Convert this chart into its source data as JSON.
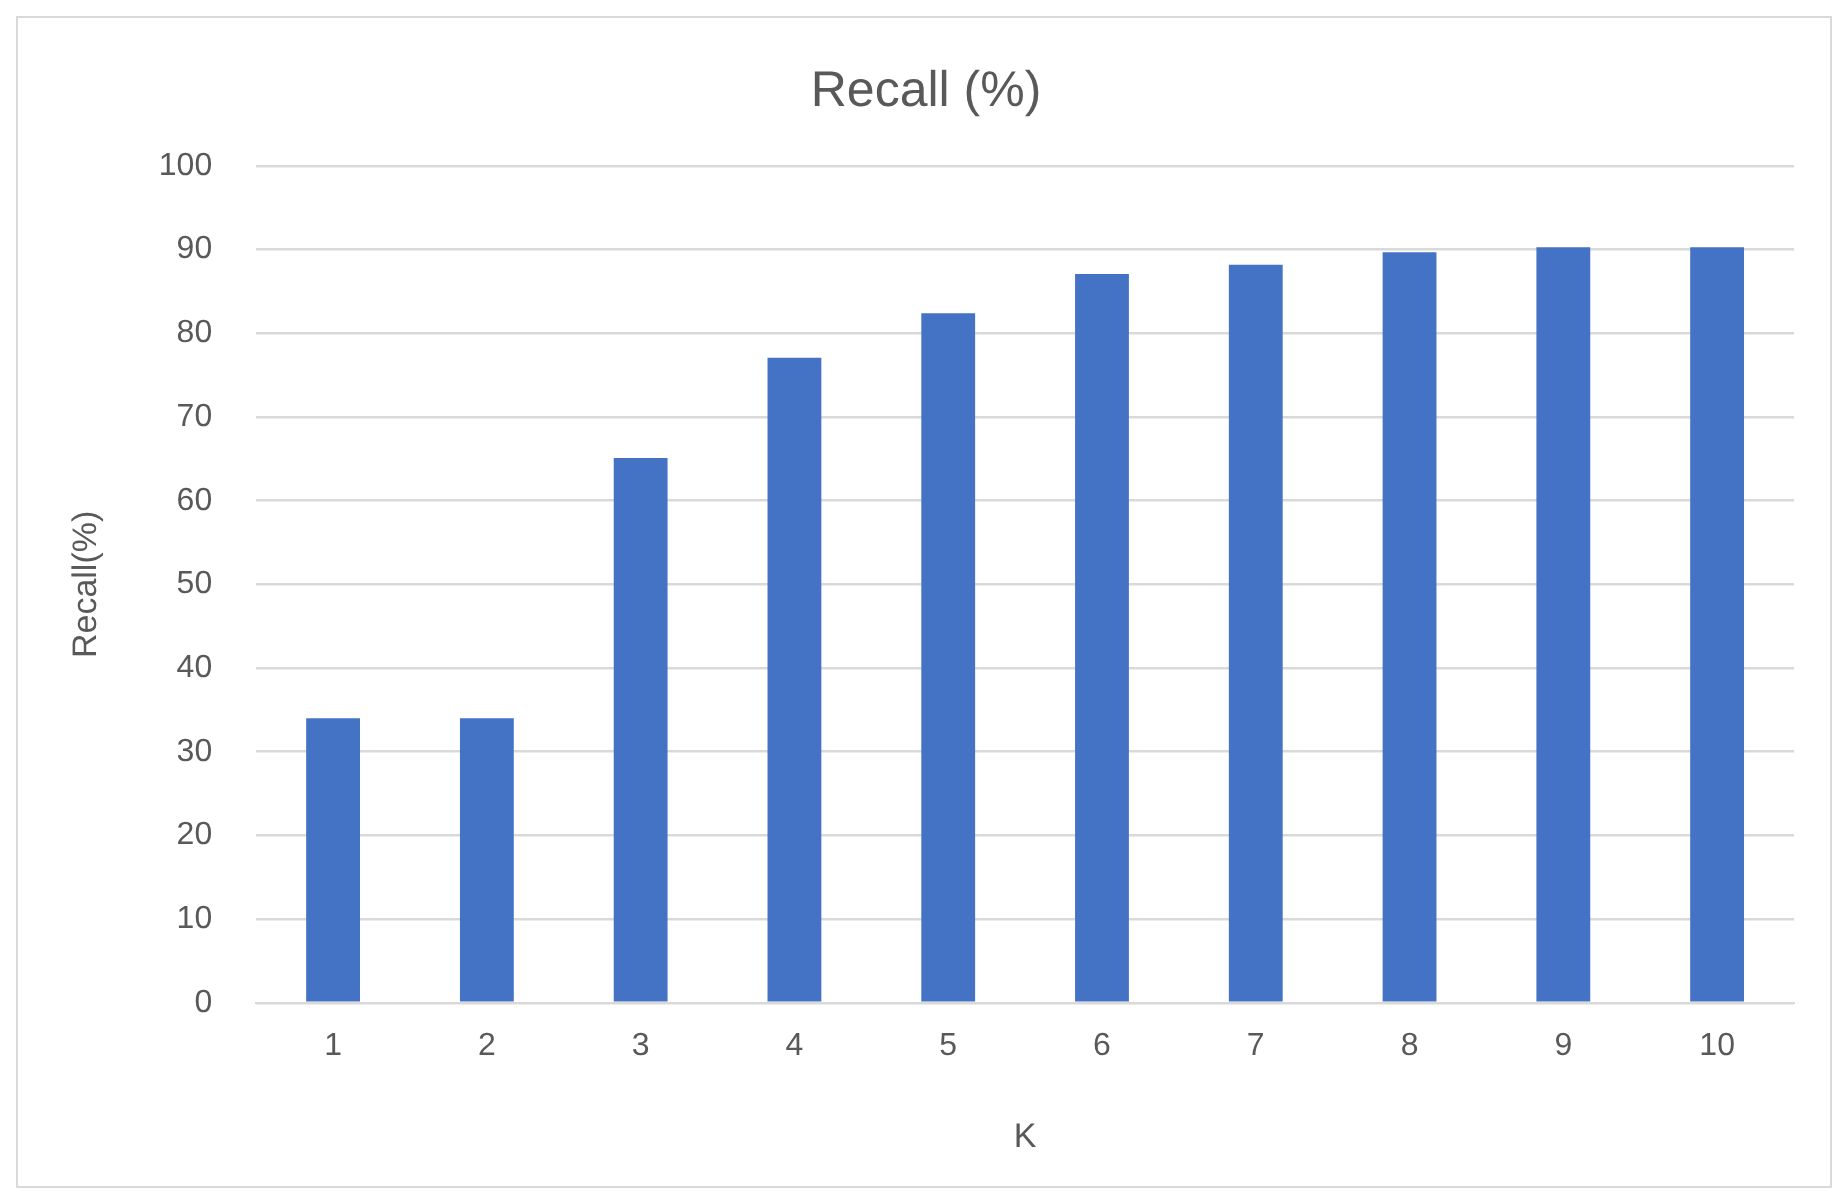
{
  "chart_data": {
    "type": "bar",
    "title": "Recall (%)",
    "xlabel": "K",
    "ylabel": "Recall(%)",
    "categories": [
      "1",
      "2",
      "3",
      "4",
      "5",
      "6",
      "7",
      "8",
      "9",
      "10"
    ],
    "values": [
      34.0,
      34.0,
      65.1,
      77.1,
      82.4,
      87.1,
      88.2,
      89.7,
      90.3,
      90.3
    ],
    "color": "#4472c4",
    "ylim": [
      0,
      100
    ],
    "yticks": [
      0,
      10,
      20,
      30,
      40,
      50,
      60,
      70,
      80,
      90,
      100
    ],
    "grid": "y"
  }
}
